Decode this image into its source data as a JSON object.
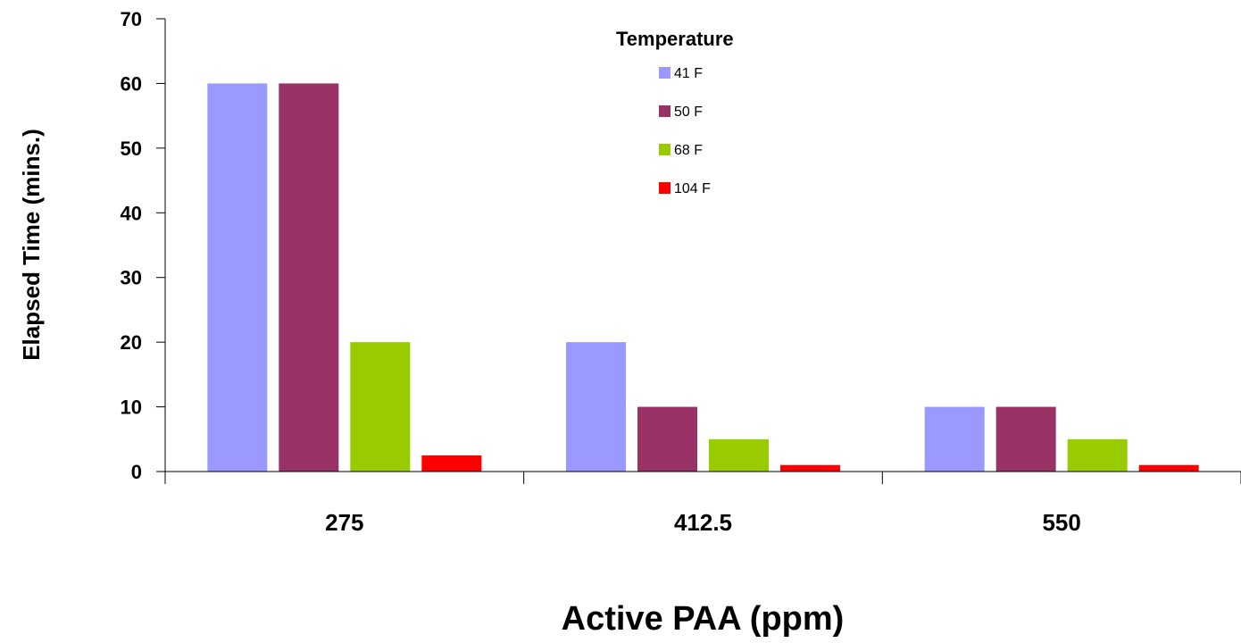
{
  "chart_data": {
    "type": "bar",
    "categories": [
      "275",
      "412.5",
      "550"
    ],
    "series": [
      {
        "name": "41 F",
        "color": "#9999ff",
        "values": [
          60,
          20,
          10
        ]
      },
      {
        "name": "50 F",
        "color": "#993366",
        "values": [
          60,
          10,
          10
        ]
      },
      {
        "name": "68 F",
        "color": "#99cc00",
        "values": [
          20,
          5,
          5
        ]
      },
      {
        "name": "104 F",
        "color": "#ff0000",
        "values": [
          2.5,
          1,
          1
        ]
      }
    ],
    "title": "",
    "xlabel": "Active PAA (ppm)",
    "ylabel": "Elapsed Time (mins.)",
    "ylim": [
      0,
      70
    ],
    "yticks": [
      "0",
      "10",
      "20",
      "30",
      "40",
      "50",
      "60",
      "70"
    ],
    "grid": false,
    "legend": {
      "title": "Temperature",
      "placement": "top-center"
    }
  }
}
